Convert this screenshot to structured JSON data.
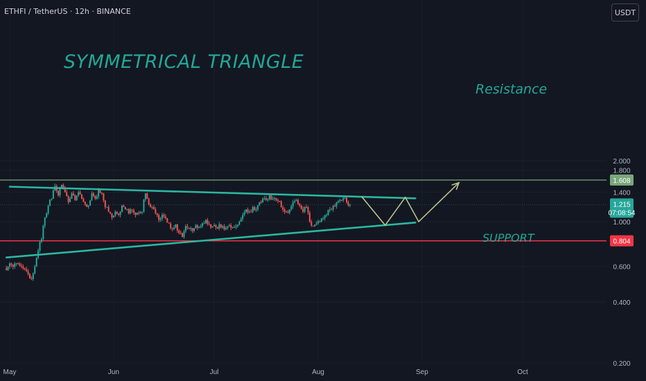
{
  "header": {
    "symbol_line": "ETHFI / TetherUS · 12h · BINANCE",
    "currency_button": "USDT"
  },
  "colors": {
    "background": "#131722",
    "candle_up": "#26a69a",
    "candle_down": "#ef5350",
    "trendline": "#2bb7a0",
    "resistance": "#79a77a",
    "support": "#f23645",
    "projection": "#b9c48a",
    "annotation_text": "#22a897",
    "axis_text": "#b2b5be"
  },
  "chart_data": {
    "type": "candlestick",
    "title": "SYMMETRICAL TRIANGLE",
    "x_ticks": [
      "May",
      "Jun",
      "Jul",
      "Aug",
      "Sep",
      "Oct"
    ],
    "y_ticks": [
      "2.000",
      "1.800",
      "1.400",
      "1.000",
      "0.600",
      "0.400",
      "0.200"
    ],
    "y_tick_values": [
      2.0,
      1.8,
      1.4,
      1.0,
      0.6,
      0.4,
      0.2
    ],
    "ylim": [
      0.2,
      2.0
    ],
    "x_domain": [
      "2024-05-01",
      "2024-10-01"
    ],
    "price_tags": [
      {
        "name": "resistance",
        "label": "1.608",
        "value": 1.608
      },
      {
        "name": "current",
        "label": "1.215",
        "value": 1.215,
        "sublabel": "07:08:54"
      },
      {
        "name": "support",
        "label": "0.804",
        "value": 0.804
      }
    ],
    "levels": [
      {
        "name": "Resistance",
        "value": 1.608
      },
      {
        "name": "SUPPORT",
        "value": 0.804
      }
    ],
    "annotations": {
      "title": "SYMMETRICAL TRIANGLE",
      "resistance_label": "Resistance",
      "support_label": "SUPPORT"
    },
    "trendlines": [
      {
        "name": "upper",
        "points": [
          [
            "2024-05-01",
            1.49
          ],
          [
            "2024-08-30",
            1.305
          ]
        ]
      },
      {
        "name": "lower",
        "points": [
          [
            "2024-04-30",
            0.665
          ],
          [
            "2024-08-30",
            0.99
          ]
        ]
      }
    ],
    "projection": [
      [
        "2024-08-14",
        1.33
      ],
      [
        "2024-08-21",
        0.96
      ],
      [
        "2024-08-27",
        1.32
      ],
      [
        "2024-08-31",
        1.0
      ],
      [
        "2024-09-12",
        1.56
      ]
    ],
    "candle_closes": [
      [
        "2024-04-30",
        0.6
      ],
      [
        "2024-05-01",
        0.61
      ],
      [
        "2024-05-02",
        0.62
      ],
      [
        "2024-05-03",
        0.62
      ],
      [
        "2024-05-04",
        0.6
      ],
      [
        "2024-05-05",
        0.58
      ],
      [
        "2024-05-06",
        0.55
      ],
      [
        "2024-05-07",
        0.52
      ],
      [
        "2024-05-08",
        0.6
      ],
      [
        "2024-05-09",
        0.72
      ],
      [
        "2024-05-10",
        0.82
      ],
      [
        "2024-05-11",
        1.05
      ],
      [
        "2024-05-12",
        1.2
      ],
      [
        "2024-05-13",
        1.3
      ],
      [
        "2024-05-14",
        1.5
      ],
      [
        "2024-05-15",
        1.35
      ],
      [
        "2024-05-16",
        1.52
      ],
      [
        "2024-05-17",
        1.4
      ],
      [
        "2024-05-18",
        1.25
      ],
      [
        "2024-05-19",
        1.38
      ],
      [
        "2024-05-20",
        1.28
      ],
      [
        "2024-05-21",
        1.4
      ],
      [
        "2024-05-22",
        1.3
      ],
      [
        "2024-05-23",
        1.22
      ],
      [
        "2024-05-24",
        1.2
      ],
      [
        "2024-05-25",
        1.38
      ],
      [
        "2024-05-26",
        1.3
      ],
      [
        "2024-05-27",
        1.45
      ],
      [
        "2024-05-28",
        1.38
      ],
      [
        "2024-05-29",
        1.18
      ],
      [
        "2024-05-30",
        1.12
      ],
      [
        "2024-05-31",
        1.05
      ],
      [
        "2024-06-01",
        1.12
      ],
      [
        "2024-06-02",
        1.08
      ],
      [
        "2024-06-03",
        1.2
      ],
      [
        "2024-06-04",
        1.15
      ],
      [
        "2024-06-05",
        1.1
      ],
      [
        "2024-06-06",
        1.14
      ],
      [
        "2024-06-07",
        1.08
      ],
      [
        "2024-06-08",
        1.1
      ],
      [
        "2024-06-09",
        1.12
      ],
      [
        "2024-06-10",
        1.38
      ],
      [
        "2024-06-11",
        1.22
      ],
      [
        "2024-06-12",
        1.18
      ],
      [
        "2024-06-13",
        1.1
      ],
      [
        "2024-06-14",
        1.02
      ],
      [
        "2024-06-15",
        1.08
      ],
      [
        "2024-06-16",
        1.04
      ],
      [
        "2024-06-17",
        0.98
      ],
      [
        "2024-06-18",
        0.92
      ],
      [
        "2024-06-19",
        0.97
      ],
      [
        "2024-06-20",
        0.88
      ],
      [
        "2024-06-21",
        0.84
      ],
      [
        "2024-06-22",
        0.95
      ],
      [
        "2024-06-23",
        0.92
      ],
      [
        "2024-06-24",
        0.9
      ],
      [
        "2024-06-25",
        0.96
      ],
      [
        "2024-06-26",
        0.94
      ],
      [
        "2024-06-27",
        0.98
      ],
      [
        "2024-06-28",
        1.02
      ],
      [
        "2024-06-29",
        0.97
      ],
      [
        "2024-06-30",
        0.95
      ],
      [
        "2024-07-01",
        0.94
      ],
      [
        "2024-07-02",
        0.97
      ],
      [
        "2024-07-03",
        0.95
      ],
      [
        "2024-07-04",
        0.93
      ],
      [
        "2024-07-05",
        0.96
      ],
      [
        "2024-07-06",
        0.94
      ],
      [
        "2024-07-07",
        0.95
      ],
      [
        "2024-07-08",
        1.0
      ],
      [
        "2024-07-09",
        1.08
      ],
      [
        "2024-07-10",
        1.15
      ],
      [
        "2024-07-11",
        1.12
      ],
      [
        "2024-07-12",
        1.18
      ],
      [
        "2024-07-13",
        1.15
      ],
      [
        "2024-07-14",
        1.25
      ],
      [
        "2024-07-15",
        1.3
      ],
      [
        "2024-07-16",
        1.28
      ],
      [
        "2024-07-17",
        1.35
      ],
      [
        "2024-07-18",
        1.3
      ],
      [
        "2024-07-19",
        1.28
      ],
      [
        "2024-07-20",
        1.26
      ],
      [
        "2024-07-21",
        1.15
      ],
      [
        "2024-07-22",
        1.12
      ],
      [
        "2024-07-23",
        1.15
      ],
      [
        "2024-07-24",
        1.25
      ],
      [
        "2024-07-25",
        1.28
      ],
      [
        "2024-07-26",
        1.2
      ],
      [
        "2024-07-27",
        1.12
      ],
      [
        "2024-07-28",
        1.18
      ],
      [
        "2024-07-29",
        1.0
      ],
      [
        "2024-07-30",
        0.95
      ],
      [
        "2024-07-31",
        0.98
      ],
      [
        "2024-08-01",
        1.0
      ],
      [
        "2024-08-02",
        1.04
      ],
      [
        "2024-08-03",
        1.08
      ],
      [
        "2024-08-04",
        1.15
      ],
      [
        "2024-08-05",
        1.2
      ],
      [
        "2024-08-06",
        1.25
      ],
      [
        "2024-08-07",
        1.28
      ],
      [
        "2024-08-08",
        1.31
      ],
      [
        "2024-08-09",
        1.25
      ],
      [
        "2024-08-10",
        1.215
      ]
    ]
  }
}
